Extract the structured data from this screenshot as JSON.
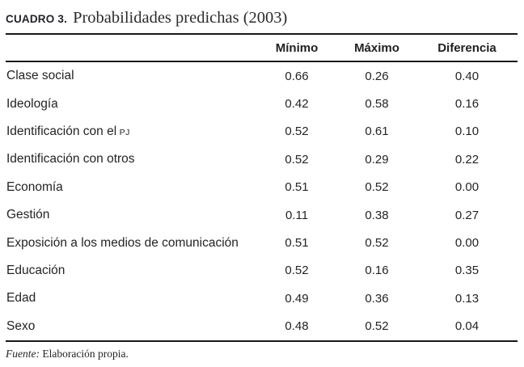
{
  "title": {
    "label": "CUADRO 3.",
    "text": "Probabilidades predichas (2003)"
  },
  "table": {
    "columns": [
      "Mínimo",
      "Máximo",
      "Diferencia"
    ],
    "rows": [
      {
        "label": "Clase social",
        "acronym": "",
        "minimo": "0.66",
        "maximo": "0.26",
        "diferencia": "0.40"
      },
      {
        "label": "Ideología",
        "acronym": "",
        "minimo": "0.42",
        "maximo": "0.58",
        "diferencia": "0.16"
      },
      {
        "label": "Identificación con el",
        "acronym": "PJ",
        "minimo": "0.52",
        "maximo": "0.61",
        "diferencia": "0.10"
      },
      {
        "label": "Identificación con otros",
        "acronym": "",
        "minimo": "0.52",
        "maximo": "0.29",
        "diferencia": "0.22"
      },
      {
        "label": "Economía",
        "acronym": "",
        "minimo": "0.51",
        "maximo": "0.52",
        "diferencia": "0.00"
      },
      {
        "label": "Gestión",
        "acronym": "",
        "minimo": "0.11",
        "maximo": "0.38",
        "diferencia": "0.27"
      },
      {
        "label": "Exposición a los medios de comunicación",
        "acronym": "",
        "minimo": "0.51",
        "maximo": "0.52",
        "diferencia": "0.00"
      },
      {
        "label": "Educación",
        "acronym": "",
        "minimo": "0.52",
        "maximo": "0.16",
        "diferencia": "0.35"
      },
      {
        "label": "Edad",
        "acronym": "",
        "minimo": "0.49",
        "maximo": "0.36",
        "diferencia": "0.13"
      },
      {
        "label": "Sexo",
        "acronym": "",
        "minimo": "0.48",
        "maximo": "0.52",
        "diferencia": "0.04"
      }
    ]
  },
  "footer": {
    "source_label": "Fuente:",
    "source_text": "Elaboración propia."
  },
  "colors": {
    "background": "#ffffff",
    "text": "#242424",
    "rule": "#181818"
  }
}
